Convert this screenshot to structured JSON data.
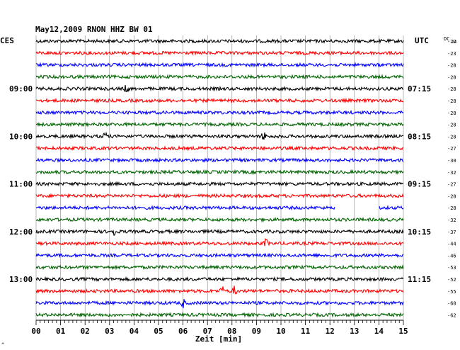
{
  "header": {
    "title": "May12,2009   RNON HHZ BW 01",
    "left_tz": "CES",
    "right_tz": "UTC",
    "dc_label": "DC",
    "dc_value": "24"
  },
  "chart_data": {
    "type": "line",
    "title": "May12,2009   RNON HHZ BW 01",
    "xlabel": "Zeit [min]",
    "xlim": [
      0,
      15
    ],
    "x_ticks": [
      "00",
      "01",
      "02",
      "03",
      "04",
      "05",
      "06",
      "07",
      "08",
      "09",
      "10",
      "11",
      "12",
      "13",
      "14",
      "15"
    ],
    "left_hour_labels": [
      {
        "row": 4,
        "text": "09:00"
      },
      {
        "row": 8,
        "text": "10:00"
      },
      {
        "row": 12,
        "text": "11:00"
      },
      {
        "row": 16,
        "text": "12:00"
      },
      {
        "row": 20,
        "text": "13:00"
      }
    ],
    "right_hour_labels": [
      {
        "row": 4,
        "text": "07:15"
      },
      {
        "row": 8,
        "text": "08:15"
      },
      {
        "row": 12,
        "text": "09:15"
      },
      {
        "row": 16,
        "text": "10:15"
      },
      {
        "row": 20,
        "text": "11:15"
      }
    ],
    "dc_offsets": [
      -22,
      -23,
      -28,
      -28,
      -28,
      -28,
      -28,
      -28,
      -28,
      -27,
      -30,
      -32,
      -27,
      -28,
      -28,
      -32,
      -37,
      -44,
      -46,
      -53,
      -52,
      -55,
      -60,
      -62
    ],
    "trace_colors": [
      "#000000",
      "#ff0000",
      "#0000ff",
      "#006400"
    ],
    "gaps": [
      {
        "row": 14,
        "start_min": 12.2,
        "end_min": 14.0
      }
    ],
    "events": [
      {
        "row": 4,
        "min": 3.7
      },
      {
        "row": 8,
        "min": 2.8
      },
      {
        "row": 8,
        "min": 9.3
      },
      {
        "row": 16,
        "min": 3.2
      },
      {
        "row": 17,
        "min": 9.4
      },
      {
        "row": 21,
        "min": 7.6
      },
      {
        "row": 21,
        "min": 8.1
      },
      {
        "row": 22,
        "min": 6.0
      }
    ]
  },
  "footer_mark": "^"
}
